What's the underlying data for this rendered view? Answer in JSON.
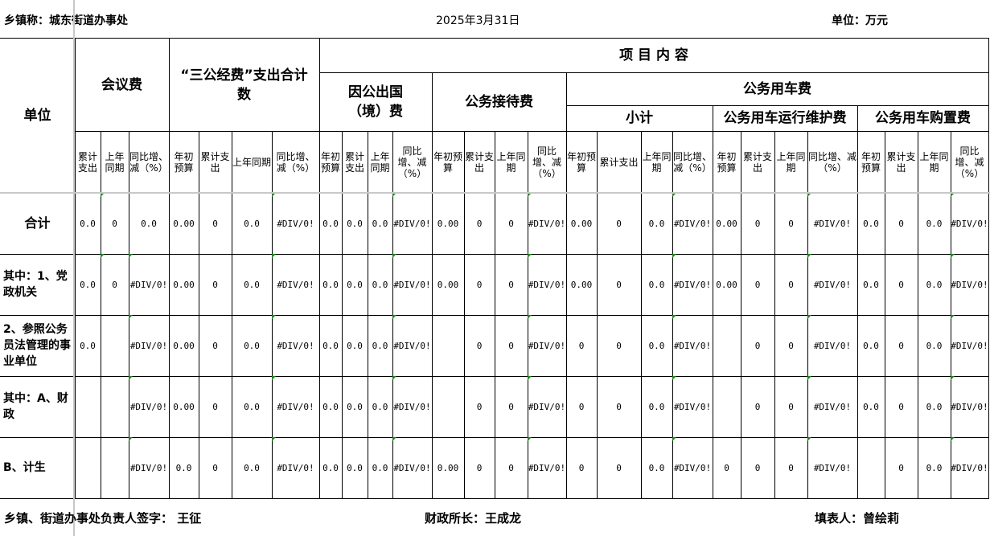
{
  "header": {
    "town": "乡镇称：城东街道办事处",
    "date": "2025年3月31日",
    "unit": "单位：万元"
  },
  "table": {
    "unit_header": "单位",
    "meeting_fee": "会议费",
    "three_public_total": "“三公经费”支出合计数",
    "project_content": "项 目 内 容",
    "overseas": "因公出国（境）费",
    "reception": "公务接待费",
    "vehicle": "公务用车费",
    "vehicle_subtotal": "小计",
    "vehicle_maintenance": "公务用车运行维护费",
    "vehicle_purchase": "公务用车购置费",
    "sub_headers": [
      "累计支出",
      "上年同期",
      "同比增、减（%）",
      "年初预算",
      "累计支出",
      "上年同期",
      "同比增、减（%）",
      "年初预算",
      "累计支出",
      "上年同期",
      "同比增、减（%）",
      "年初预算",
      "累计支出",
      "上年同期",
      "同比增、减（%）",
      "年初预算",
      "累计支出",
      "上年同期",
      "同比增、减（%）",
      "年初预算",
      "累计支出",
      "上年同期",
      "同比增、减（%）",
      "年初预算",
      "累计支出",
      "上年同期",
      "同比增、减（%）"
    ],
    "rows": [
      {
        "label": "合计",
        "values": [
          "0.0",
          "0",
          "0.0",
          "0.00",
          "0",
          "0.0",
          "#DIV/0!",
          "0.0",
          "0.0",
          "0.0",
          "#DIV/0!",
          "0.00",
          "0",
          "0",
          "#DIV/0!",
          "0.00",
          "0",
          "0.0",
          "#DIV/0!",
          "0.00",
          "0",
          "0",
          "#DIV/0!",
          "0.0",
          "0",
          "0.0",
          "#DIV/0!"
        ]
      },
      {
        "label": "其中：1、党政机关",
        "values": [
          "0.0",
          "0",
          "#DIV/0!",
          "0.00",
          "0",
          "0.0",
          "#DIV/0!",
          "0.0",
          "0.0",
          "0.0",
          "#DIV/0!",
          "0.00",
          "0",
          "0",
          "#DIV/0!",
          "0.00",
          "0",
          "0.0",
          "#DIV/0!",
          "0.00",
          "0",
          "0",
          "#DIV/0!",
          "0.0",
          "0",
          "0.0",
          "#DIV/0!"
        ]
      },
      {
        "label": "2、参照公务员法管理的事业单位",
        "values": [
          "0.0",
          "",
          "#DIV/0!",
          "0.00",
          "0",
          "0.0",
          "#DIV/0!",
          "0.0",
          "0.0",
          "0.0",
          "#DIV/0!",
          "",
          "0",
          "0",
          "#DIV/0!",
          "0",
          "0",
          "0.0",
          "#DIV/0!",
          "",
          "0",
          "0",
          "#DIV/0!",
          "0.0",
          "0",
          "0.0",
          "#DIV/0!"
        ]
      },
      {
        "label": "其中：A、财政",
        "values": [
          "",
          "",
          "#DIV/0!",
          "0.00",
          "0",
          "0.0",
          "#DIV/0!",
          "0.0",
          "0.0",
          "0.0",
          "#DIV/0!",
          "",
          "0",
          "0",
          "#DIV/0!",
          "0",
          "0",
          "0.0",
          "#DIV/0!",
          "",
          "0",
          "0",
          "#DIV/0!",
          "0.0",
          "0",
          "0.0",
          "#DIV/0!"
        ]
      },
      {
        "label": "B、计生",
        "values": [
          "",
          "",
          "#DIV/0!",
          "0.0",
          "0",
          "0.0",
          "#DIV/0!",
          "0.0",
          "0.0",
          "0.0",
          "#DIV/0!",
          "0.00",
          "0",
          "0",
          "#DIV/0!",
          "0",
          "0",
          "0.0",
          "#DIV/0!",
          "0",
          "0",
          "0",
          "#DIV/0!",
          "",
          "0",
          "0.0",
          "#DIV/0!"
        ]
      }
    ]
  },
  "footer": {
    "head_signature": "乡镇、街道办事处负责人签字： 王征",
    "finance_director": "财政所长：王成龙",
    "preparer": "填表人：曾绘莉"
  },
  "colors": {
    "grid": "#000000",
    "indicator": "#1a8a1a",
    "freeze_line": "#c8c8c8"
  }
}
